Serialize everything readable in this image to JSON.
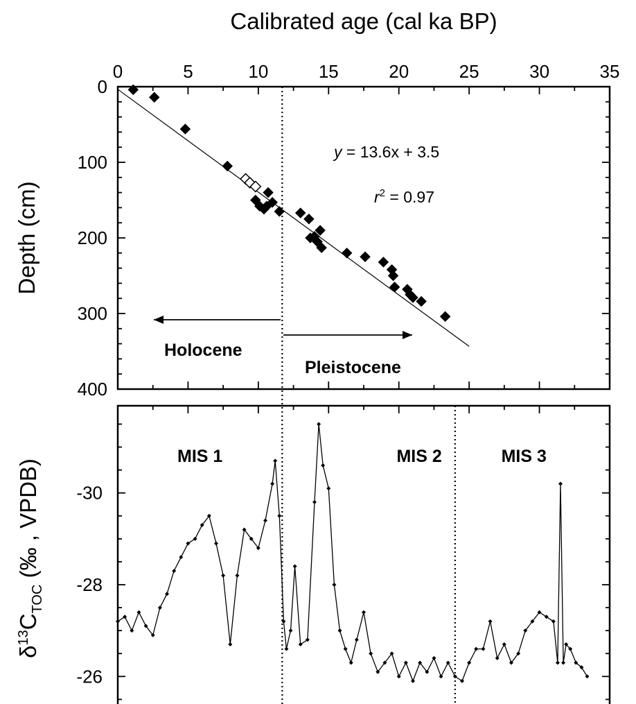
{
  "chart_data": [
    {
      "type": "scatter",
      "title": "Calibrated age (cal ka BP)",
      "xlabel": "Calibrated age (cal ka BP)",
      "ylabel": "Depth (cm)",
      "xlim": [
        0,
        35
      ],
      "ylim": [
        400,
        0
      ],
      "x_ticks": [
        "0",
        "5",
        "10",
        "15",
        "20",
        "25",
        "30",
        "35"
      ],
      "y_ticks": [
        "0",
        "100",
        "200",
        "300",
        "400"
      ],
      "grid": false,
      "series": [
        {
          "marker": "filled-diamond",
          "points": [
            [
              1.1,
              4
            ],
            [
              2.6,
              14
            ],
            [
              4.8,
              56
            ],
            [
              7.8,
              105
            ],
            [
              9.8,
              150
            ],
            [
              10.1,
              158
            ],
            [
              10.4,
              162
            ],
            [
              10.7,
              140
            ],
            [
              11.0,
              153
            ],
            [
              10.6,
              158
            ],
            [
              11.5,
              165
            ],
            [
              13.0,
              167
            ],
            [
              13.6,
              175
            ],
            [
              13.7,
              200
            ],
            [
              14.0,
              198
            ],
            [
              14.2,
              205
            ],
            [
              14.4,
              190
            ],
            [
              14.5,
              213
            ],
            [
              16.3,
              220
            ],
            [
              17.6,
              225
            ],
            [
              18.9,
              232
            ],
            [
              19.5,
              242
            ],
            [
              19.6,
              250
            ],
            [
              19.7,
              265
            ],
            [
              20.6,
              268
            ],
            [
              20.8,
              275
            ],
            [
              21.0,
              279
            ],
            [
              21.6,
              284
            ],
            [
              23.3,
              304
            ]
          ]
        },
        {
          "marker": "open-diamond",
          "points": [
            [
              9.1,
              122
            ],
            [
              9.4,
              127
            ],
            [
              9.8,
              132
            ]
          ]
        }
      ],
      "fit_line": {
        "x": [
          0,
          25
        ],
        "y": [
          3.5,
          343.5
        ]
      },
      "annotations": {
        "equation_y": "y",
        "equation_rest": " = 13.6x + 3.5",
        "r2_r": "r",
        "r2_sup": "2",
        "r2_rest": " = 0.97",
        "holocene": "Holocene",
        "pleistocene": "Pleistocene"
      },
      "boundary_x": 11.7
    },
    {
      "type": "line",
      "xlabel": "",
      "ylabel_parts": {
        "delta": "δ",
        "sup": "13",
        "c": "C",
        "sub": "TOC",
        "tail": " (‰ , VPDB)"
      },
      "xlim": [
        0,
        35
      ],
      "ylim": [
        -25.4,
        -31.9
      ],
      "y_ticks": [
        "-26",
        "-28",
        "-30"
      ],
      "labels": [
        "MIS 1",
        "MIS 2",
        "MIS 3"
      ],
      "boundaries_x": [
        11.7,
        24
      ],
      "series": [
        {
          "x": [
            0,
            0.5,
            1,
            1.5,
            2,
            2.5,
            3,
            3.5,
            4,
            4.5,
            5,
            5.5,
            6,
            6.5,
            7,
            7.5,
            8,
            8.5,
            9,
            9.5,
            10,
            10.5,
            11,
            11.2,
            11.5,
            11.8,
            12,
            12.3,
            12.6,
            13,
            13.5,
            14,
            14.3,
            14.6,
            15,
            15.4,
            15.8,
            16.2,
            16.6,
            17,
            17.5,
            18,
            18.5,
            19,
            19.5,
            20,
            20.5,
            21,
            21.5,
            22,
            22.5,
            23,
            23.5,
            24,
            24.5,
            25,
            25.5,
            26,
            26.5,
            27,
            27.5,
            28,
            28.5,
            29,
            29.5,
            30,
            30.5,
            31,
            31.3,
            31.5,
            31.7,
            31.9,
            32.2,
            32.6,
            33,
            33.4
          ],
          "y": [
            -27.2,
            -27.3,
            -27.0,
            -27.4,
            -27.1,
            -26.9,
            -27.5,
            -27.8,
            -28.3,
            -28.6,
            -28.9,
            -29.0,
            -29.3,
            -29.5,
            -28.9,
            -28.2,
            -26.7,
            -28.2,
            -29.2,
            -29.0,
            -28.8,
            -29.4,
            -30.2,
            -30.7,
            -29.5,
            -27.2,
            -26.6,
            -27.0,
            -28.4,
            -26.7,
            -26.8,
            -29.8,
            -31.5,
            -30.6,
            -30.1,
            -28.0,
            -27.0,
            -26.6,
            -26.3,
            -26.8,
            -27.4,
            -26.5,
            -26.1,
            -26.3,
            -26.5,
            -26.0,
            -26.3,
            -25.9,
            -26.3,
            -26.1,
            -26.4,
            -26.0,
            -26.3,
            -26.0,
            -25.9,
            -26.3,
            -26.6,
            -26.6,
            -27.2,
            -26.4,
            -26.7,
            -26.3,
            -26.5,
            -27.0,
            -27.2,
            -27.4,
            -27.3,
            -27.2,
            -26.3,
            -30.2,
            -26.3,
            -26.7,
            -26.6,
            -26.3,
            -26.2,
            -26.0
          ]
        }
      ]
    }
  ]
}
